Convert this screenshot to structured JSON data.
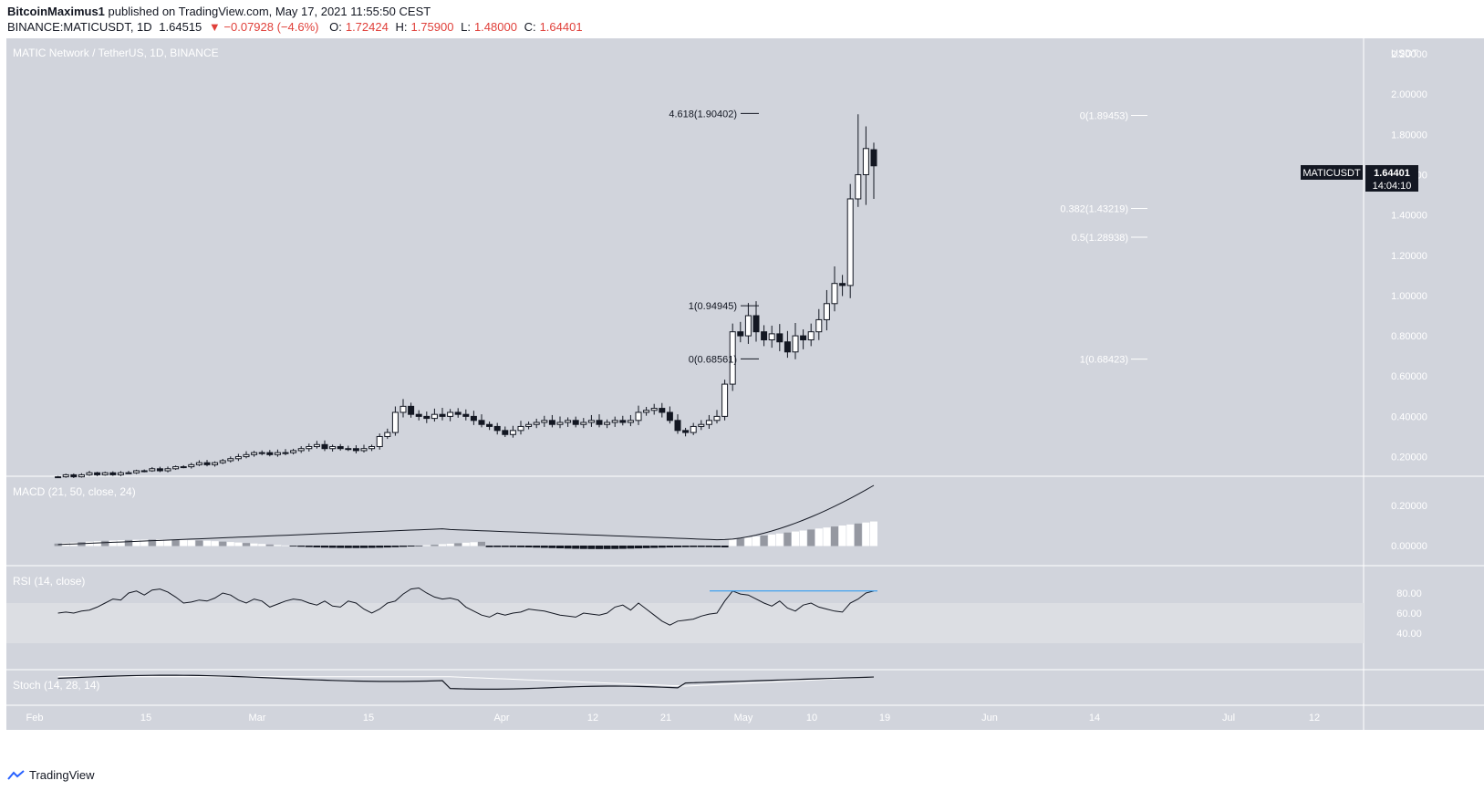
{
  "header": {
    "author": "BitcoinMaximus1",
    "published": "published on TradingView.com, May 17, 2021 11:55:50 CEST",
    "symbol": "BINANCE:MATICUSDT, 1D",
    "last": "1.64515",
    "change": "−0.07928 (−4.6%)",
    "o_label": "O:",
    "o_val": "1.72424",
    "h_label": "H:",
    "h_val": "1.75900",
    "l_label": "L:",
    "l_val": "1.48000",
    "c_label": "C:",
    "c_val": "1.64401"
  },
  "panes": {
    "main_title": "MATIC Network / TetherUS, 1D, BINANCE",
    "macd_title": "MACD (21, 50, close, 24)",
    "rsi_title": "RSI (14, close)",
    "stoch_title": "Stoch (14, 28, 14)",
    "currency": "USDT",
    "symbol_tag": "MATICUSDT",
    "price_tag": "1.64401",
    "countdown": "14:04:10"
  },
  "footer": {
    "brand": "TradingView"
  },
  "colors": {
    "background": "#d1d4dc",
    "rsi_band": "#dcdee3",
    "candle_up": "#ffffff",
    "candle_down": "#131722",
    "rsi_line": "#131722",
    "resistance": "#2196f3"
  },
  "chart_data": {
    "type": "candlestick",
    "x_ticks": [
      "Feb",
      "15",
      "Mar",
      "15",
      "Apr",
      "12",
      "21",
      "May",
      "10",
      "19",
      "Jun",
      "14",
      "Jul",
      "12"
    ],
    "y_ticks": [
      "2.20000",
      "2.00000",
      "1.80000",
      "1.60000",
      "1.40000",
      "1.20000",
      "1.00000",
      "0.80000",
      "0.60000",
      "0.40000",
      "0.20000"
    ],
    "ylim": [
      0.13,
      2.25
    ],
    "fib_left": [
      {
        "label": "4.618(1.90402)",
        "value": 1.90402
      },
      {
        "label": "1(0.94945)",
        "value": 0.94945
      },
      {
        "label": "0(0.68561)",
        "value": 0.68561
      }
    ],
    "fib_right": [
      {
        "label": "0(1.89453)",
        "value": 1.89453
      },
      {
        "label": "0.382(1.43219)",
        "value": 1.43219
      },
      {
        "label": "0.5(1.28938)",
        "value": 1.28938
      },
      {
        "label": "1(0.68423)",
        "value": 0.68423
      }
    ],
    "macd": {
      "y_ticks": [
        "0.20000",
        "0.00000"
      ]
    },
    "rsi": {
      "y_ticks": [
        "80.00",
        "60.00",
        "40.00"
      ],
      "resistance": 82
    },
    "stoch": {}
  }
}
